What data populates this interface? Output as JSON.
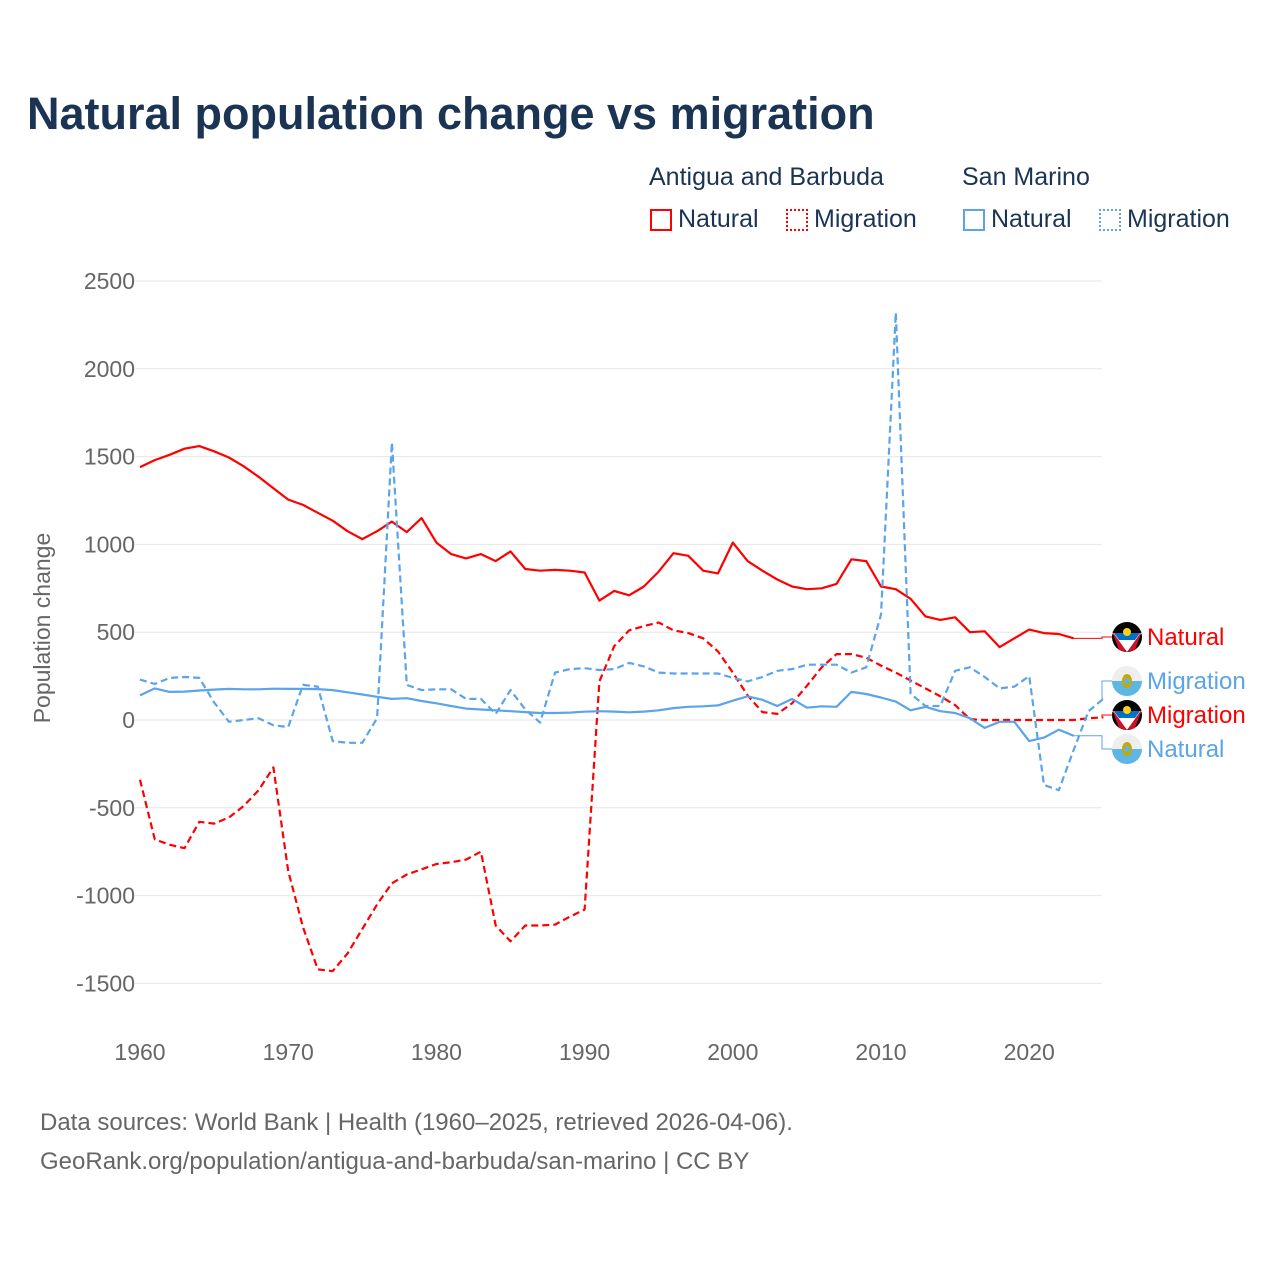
{
  "title": "Natural population change vs migration",
  "legend": {
    "groups": [
      {
        "name": "Antigua and Barbuda",
        "items": [
          "Natural",
          "Migration"
        ],
        "color": "#ff0000"
      },
      {
        "name": "San Marino",
        "items": [
          "Natural",
          "Migration"
        ],
        "color": "#5ba4ea"
      }
    ]
  },
  "footer": {
    "line1": "Data sources: World Bank | Health (1960–2025, retrieved 2026-04-06).",
    "line2": "GeoRank.org/population/antigua-and-barbuda/san-marino | CC BY"
  },
  "chart_data": {
    "type": "line",
    "title": "Natural population change vs migration",
    "xlabel": "",
    "ylabel": "Population change",
    "xlim": [
      1960,
      2025
    ],
    "ylim": [
      -1700,
      2500
    ],
    "xticks": [
      1960,
      1970,
      1980,
      1990,
      2000,
      2010,
      2020
    ],
    "yticks": [
      -1500,
      -1000,
      -500,
      0,
      500,
      1000,
      1500,
      2000,
      2500
    ],
    "ytick_labels": [
      "-1500",
      "-1000",
      "-500",
      "0",
      "500",
      "1000",
      "1500",
      "2000",
      "2500"
    ],
    "grid": true,
    "series": [
      {
        "name": "Antigua and Barbuda Natural",
        "label": "Natural",
        "color": "#ff0000",
        "dash": false,
        "start": 1960,
        "values": [
          1440,
          1480,
          1510,
          1545,
          1560,
          1530,
          1495,
          1445,
          1385,
          1320,
          1255,
          1225,
          1180,
          1135,
          1075,
          1030,
          1075,
          1130,
          1070,
          1150,
          1010,
          945,
          920,
          945,
          905,
          960,
          860,
          850,
          855,
          850,
          840,
          680,
          735,
          710,
          760,
          845,
          950,
          935,
          850,
          835,
          1010,
          905,
          850,
          800,
          760,
          745,
          750,
          775,
          915,
          905,
          760,
          745,
          690,
          590,
          570,
          585,
          500,
          505,
          415,
          465,
          515,
          495,
          490,
          465
        ]
      },
      {
        "name": "Antigua and Barbuda Migration",
        "label": "Migration",
        "color": "#ff0000",
        "dash": true,
        "start": 1960,
        "values": [
          -340,
          -680,
          -710,
          -730,
          -580,
          -590,
          -555,
          -490,
          -400,
          -270,
          -860,
          -1180,
          -1420,
          -1430,
          -1330,
          -1190,
          -1050,
          -930,
          -880,
          -850,
          -820,
          -810,
          -795,
          -750,
          -1170,
          -1260,
          -1170,
          -1170,
          -1165,
          -1120,
          -1080,
          220,
          420,
          510,
          535,
          555,
          510,
          495,
          465,
          390,
          270,
          140,
          45,
          35,
          95,
          195,
          300,
          375,
          375,
          355,
          310,
          270,
          225,
          180,
          135,
          85,
          5,
          0,
          0,
          0,
          0,
          0,
          0,
          0,
          10,
          15
        ]
      },
      {
        "name": "San Marino Natural",
        "label": "Natural",
        "color": "#5ba4ea",
        "dash": false,
        "start": 1960,
        "values": [
          140,
          180,
          160,
          162,
          168,
          173,
          177,
          175,
          175,
          178,
          177,
          177,
          176,
          170,
          158,
          145,
          132,
          120,
          124,
          108,
          95,
          80,
          65,
          60,
          55,
          50,
          45,
          40,
          40,
          42,
          47,
          50,
          48,
          44,
          48,
          55,
          68,
          75,
          78,
          83,
          110,
          135,
          115,
          80,
          120,
          70,
          78,
          75,
          160,
          148,
          128,
          105,
          55,
          75,
          50,
          40,
          10,
          -45,
          -10,
          -10,
          -120,
          -100,
          -55,
          -90
        ]
      },
      {
        "name": "San Marino Migration",
        "label": "Migration",
        "color": "#5ba4ea",
        "dash": true,
        "start": 1960,
        "values": [
          230,
          205,
          240,
          245,
          240,
          100,
          -10,
          0,
          10,
          -30,
          -40,
          200,
          190,
          -120,
          -130,
          -130,
          10,
          1580,
          200,
          170,
          175,
          175,
          120,
          120,
          35,
          170,
          60,
          -15,
          270,
          290,
          295,
          285,
          290,
          325,
          305,
          270,
          265,
          265,
          265,
          265,
          240,
          220,
          245,
          280,
          290,
          315,
          315,
          315,
          270,
          300,
          600,
          2320,
          150,
          80,
          80,
          280,
          300,
          245,
          180,
          190,
          250,
          -370,
          -400,
          -170,
          50,
          120
        ]
      }
    ],
    "end_labels": [
      {
        "series": 0,
        "text": "Natural",
        "flag": "antigua-and-barbuda"
      },
      {
        "series": 3,
        "text": "Migration",
        "flag": "san-marino"
      },
      {
        "series": 1,
        "text": "Migration",
        "flag": "antigua-and-barbuda"
      },
      {
        "series": 2,
        "text": "Natural",
        "flag": "san-marino"
      }
    ]
  }
}
